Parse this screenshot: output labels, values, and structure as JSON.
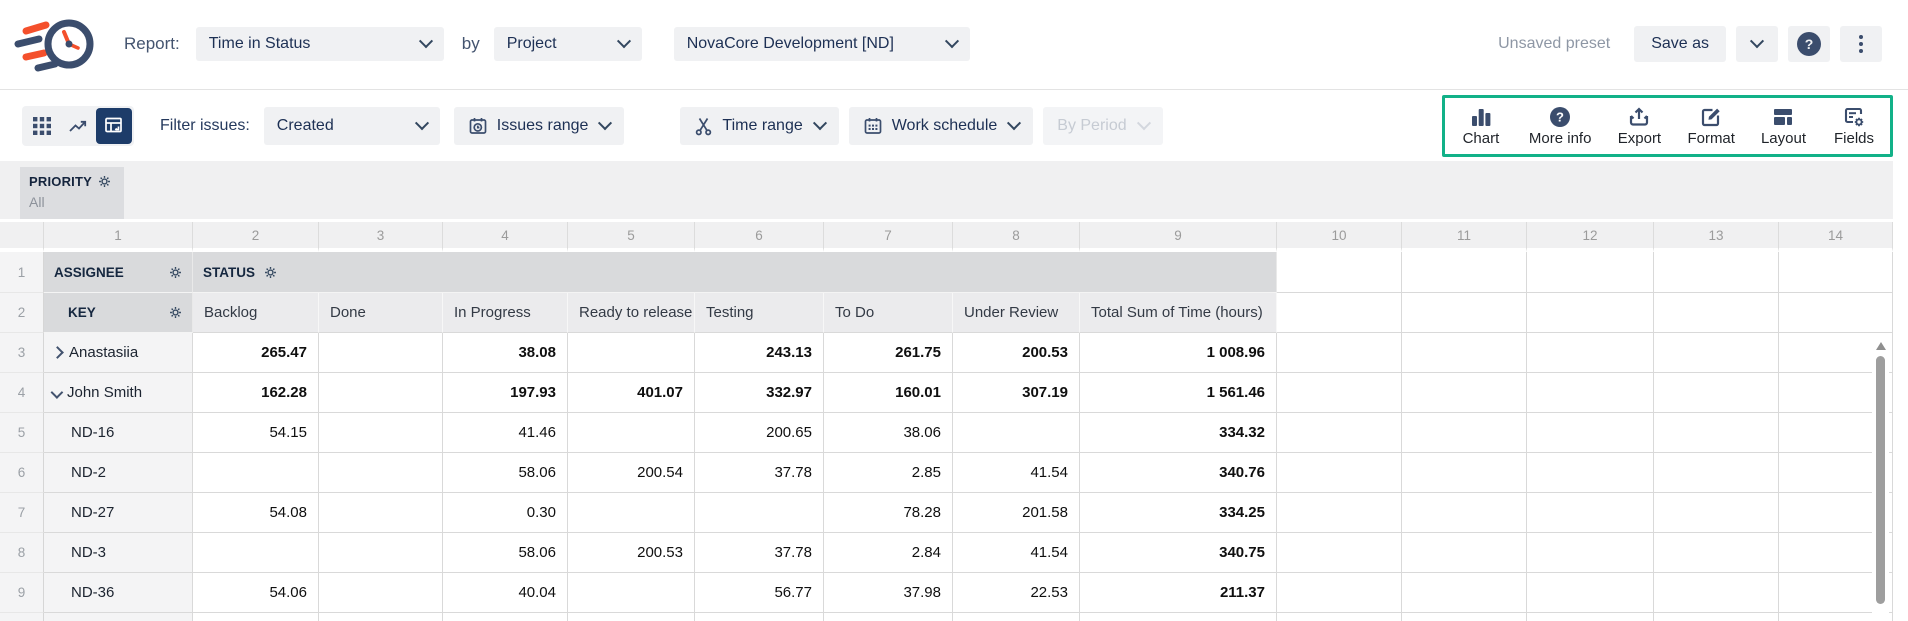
{
  "colors": {
    "navy": "#3b4d6d",
    "orange": "#f4502c",
    "accent_green": "#12b188",
    "header_gray": "#d9dadc",
    "subheader_gray": "#ebebed",
    "band_gray": "#f0f0f1"
  },
  "header": {
    "report_label": "Report:",
    "report_select": "Time in Status",
    "by_label": "by",
    "group_select": "Project",
    "project_select": "NovaCore Development [ND]",
    "preset_status": "Unsaved preset",
    "save_as_label": "Save as",
    "icons": [
      "app-logo",
      "chevron-down-icon",
      "help-icon",
      "more-options-icon"
    ]
  },
  "toolbar": {
    "filter_label": "Filter issues:",
    "filter_select": "Created",
    "issues_range_label": "Issues range",
    "time_range_label": "Time range",
    "work_schedule_label": "Work schedule",
    "by_period_label": "By Period",
    "view_icons": [
      "grid-view-icon",
      "chart-view-icon",
      "pivot-view-icon"
    ],
    "actions": [
      {
        "label": "Chart",
        "icon": "bar-chart-icon"
      },
      {
        "label": "More info",
        "icon": "question-circle-icon"
      },
      {
        "label": "Export",
        "icon": "export-icon"
      },
      {
        "label": "Format",
        "icon": "edit-icon"
      },
      {
        "label": "Layout",
        "icon": "layout-icon"
      },
      {
        "label": "Fields",
        "icon": "fields-gear-icon"
      }
    ]
  },
  "filters": {
    "priority_label": "PRIORITY",
    "priority_value": "All"
  },
  "grid": {
    "column_numbers": [
      "1",
      "2",
      "3",
      "4",
      "5",
      "6",
      "7",
      "8",
      "9",
      "10",
      "11",
      "12",
      "13",
      "14"
    ],
    "header_rows": [
      {
        "num": "1",
        "assignee": "ASSIGNEE",
        "status": "STATUS"
      },
      {
        "num": "2",
        "key": "KEY"
      }
    ],
    "status_columns": [
      "Backlog",
      "Done",
      "In Progress",
      "Ready to release",
      "Testing",
      "To Do",
      "Under Review",
      "Total Sum of Time (hours)"
    ],
    "rows": [
      {
        "num": "3",
        "label": "Anastasiia",
        "expand": "collapsed",
        "bold": true,
        "values": [
          "265.47",
          "",
          "38.08",
          "",
          "243.13",
          "261.75",
          "200.53",
          "1 008.96"
        ]
      },
      {
        "num": "4",
        "label": "John Smith",
        "expand": "expanded",
        "bold": true,
        "values": [
          "162.28",
          "",
          "197.93",
          "401.07",
          "332.97",
          "160.01",
          "307.19",
          "1 561.46"
        ]
      },
      {
        "num": "5",
        "label": "ND-16",
        "expand": "none",
        "bold": false,
        "values": [
          "54.15",
          "",
          "41.46",
          "",
          "200.65",
          "38.06",
          "",
          "334.32"
        ]
      },
      {
        "num": "6",
        "label": "ND-2",
        "expand": "none",
        "bold": false,
        "values": [
          "",
          "",
          "58.06",
          "200.54",
          "37.78",
          "2.85",
          "41.54",
          "340.76"
        ]
      },
      {
        "num": "7",
        "label": "ND-27",
        "expand": "none",
        "bold": false,
        "values": [
          "54.08",
          "",
          "0.30",
          "",
          "",
          "78.28",
          "201.58",
          "334.25"
        ]
      },
      {
        "num": "8",
        "label": "ND-3",
        "expand": "none",
        "bold": false,
        "values": [
          "",
          "",
          "58.06",
          "200.53",
          "37.78",
          "2.84",
          "41.54",
          "340.75"
        ]
      },
      {
        "num": "9",
        "label": "ND-36",
        "expand": "none",
        "bold": false,
        "values": [
          "54.06",
          "",
          "40.04",
          "",
          "56.77",
          "37.98",
          "22.53",
          "211.37"
        ]
      }
    ]
  }
}
